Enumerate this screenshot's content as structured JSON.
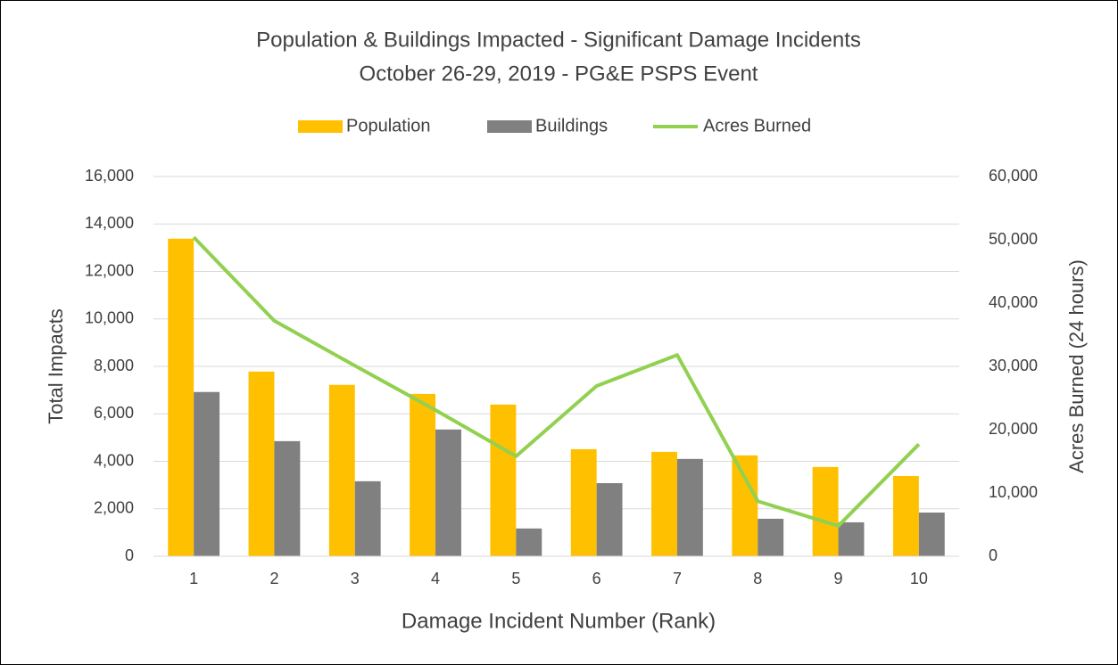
{
  "chart_data": {
    "type": "bar-line",
    "title": "Population & Buildings Impacted - Significant Damage Incidents",
    "subtitle": "October 26-29, 2019 - PG&E PSPS Event",
    "x_label": "Damage Incident Number (Rank)",
    "y_label": "Total Impacts",
    "y2_label": "Acres Burned (24 hours)",
    "categories": [
      "1",
      "2",
      "3",
      "4",
      "5",
      "6",
      "7",
      "8",
      "9",
      "10"
    ],
    "series": [
      {
        "name": "Population",
        "type": "bar",
        "color": "#ffc000",
        "values": [
          13380,
          7780,
          7220,
          6840,
          6390,
          4510,
          4400,
          4250,
          3760,
          3380
        ]
      },
      {
        "name": "Buildings",
        "type": "bar",
        "color": "#808080",
        "values": [
          6920,
          4850,
          3160,
          5340,
          1170,
          3080,
          4100,
          1580,
          1430,
          1840
        ]
      },
      {
        "name": "Acres Burned",
        "type": "line",
        "axis": "y2",
        "color": "#92d050",
        "values": [
          50400,
          37200,
          30100,
          23100,
          15800,
          26900,
          31800,
          8700,
          4800,
          17700
        ]
      }
    ],
    "ylim": [
      0,
      16000
    ],
    "yticks": [
      0,
      {
        "value": 2000,
        "label": "2,000"
      },
      {
        "value": 4000,
        "label": "4,000"
      },
      {
        "value": 6000,
        "label": "6,000"
      },
      {
        "value": 8000,
        "label": "8,000"
      },
      {
        "value": 10000,
        "label": "10,000"
      },
      {
        "value": 12000,
        "label": "12,000"
      },
      {
        "value": 14000,
        "label": "14,000"
      },
      {
        "value": 16000,
        "label": "16,000"
      }
    ],
    "y2lim": [
      0,
      60000
    ],
    "y2ticks": [
      0,
      {
        "value": 10000,
        "label": "10,000"
      },
      {
        "value": 20000,
        "label": "20,000"
      },
      {
        "value": 30000,
        "label": "30,000"
      },
      {
        "value": 40000,
        "label": "40,000"
      },
      {
        "value": 50000,
        "label": "50,000"
      },
      {
        "value": 60000,
        "label": "60,000"
      }
    ],
    "grid": true,
    "legend": "top"
  }
}
